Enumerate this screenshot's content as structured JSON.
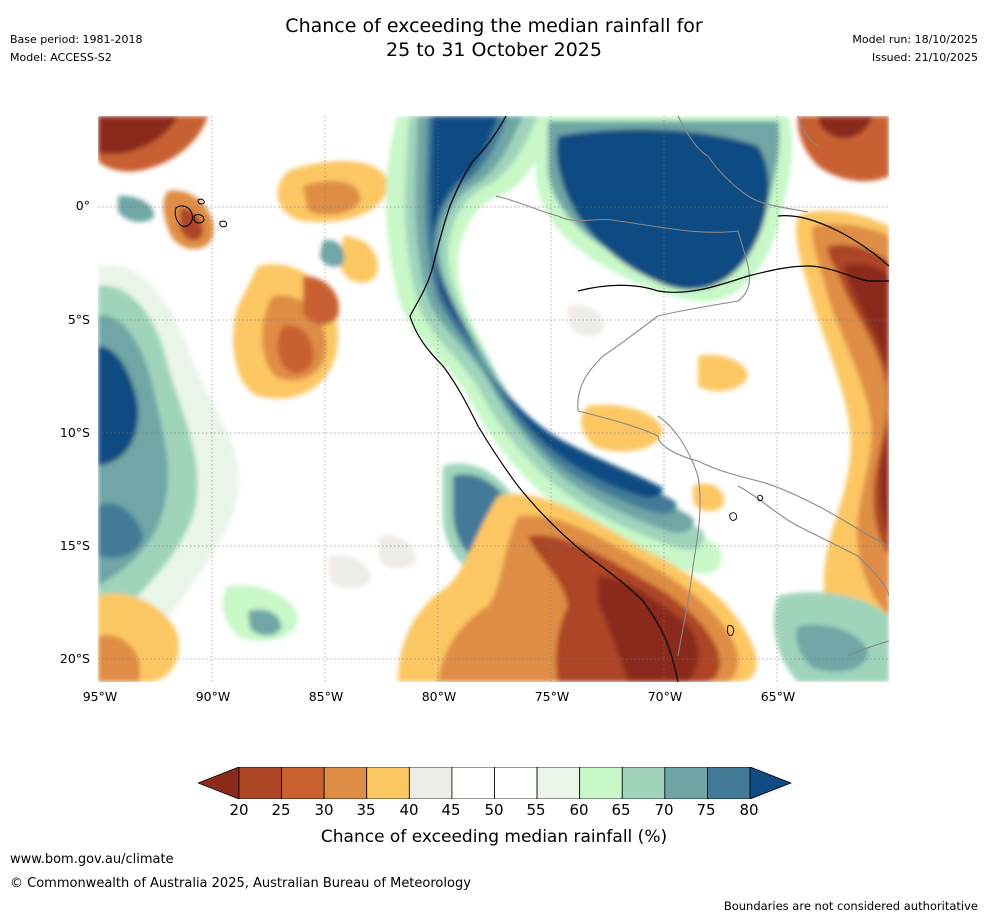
{
  "header": {
    "base_period": "Base period: 1981-2018",
    "model": "Model: ACCESS-S2",
    "title_line1": "Chance of exceeding the median rainfall for",
    "title_line2": "25 to 31 October 2025",
    "model_run": "Model run: 18/10/2025",
    "issued": "Issued: 21/10/2025"
  },
  "map": {
    "lat_labels": [
      "0°",
      "5°S",
      "10°S",
      "15°S",
      "20°S"
    ],
    "lon_labels": [
      "95°W",
      "90°W",
      "85°W",
      "80°W",
      "75°W",
      "70°W",
      "65°W"
    ]
  },
  "colorbar": {
    "ticks": [
      "20",
      "25",
      "30",
      "35",
      "40",
      "45",
      "50",
      "55",
      "60",
      "65",
      "70",
      "75",
      "80"
    ],
    "colors": [
      "#8b2a1b",
      "#ad4527",
      "#c96130",
      "#df8d45",
      "#fcc763",
      "#efebe7",
      "#ffffff",
      "#ffffff",
      "#eaf5ea",
      "#c8f7c8",
      "#9fd4bb",
      "#6fa6a5",
      "#427a98",
      "#0f4b82"
    ],
    "label": "Chance of exceeding median rainfall (%)"
  },
  "footer": {
    "url": "www.bom.gov.au/climate",
    "copyright": "© Commonwealth of Australia 2025, Australian Bureau of Meteorology",
    "note": "Boundaries are not considered authoritative"
  }
}
